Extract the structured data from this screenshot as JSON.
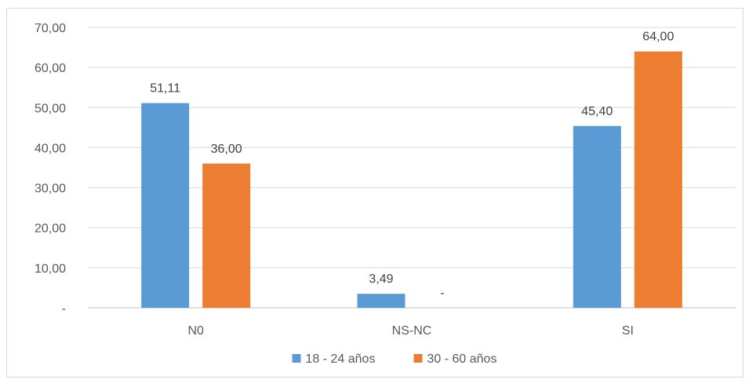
{
  "chart_data": {
    "type": "bar",
    "categories": [
      "N0",
      "NS-NC",
      "SI"
    ],
    "series": [
      {
        "name": "18 - 24 años",
        "color": "#5B9BD5",
        "values": [
          51.11,
          3.49,
          45.4
        ],
        "labels": [
          "51,11",
          "3,49",
          "45,40"
        ]
      },
      {
        "name": "30 - 60 años",
        "color": "#ED7D31",
        "values": [
          36.0,
          0,
          64.0
        ],
        "labels": [
          "36,00",
          "-",
          "64,00"
        ]
      }
    ],
    "ylim": [
      0,
      70
    ],
    "yticks": [
      0,
      10,
      20,
      30,
      40,
      50,
      60,
      70
    ],
    "ytick_labels": [
      "-",
      "10,00",
      "20,00",
      "30,00",
      "40,00",
      "50,00",
      "60,00",
      "70,00"
    ],
    "grid": true,
    "legend_position": "bottom",
    "title": "",
    "xlabel": "",
    "ylabel": ""
  }
}
